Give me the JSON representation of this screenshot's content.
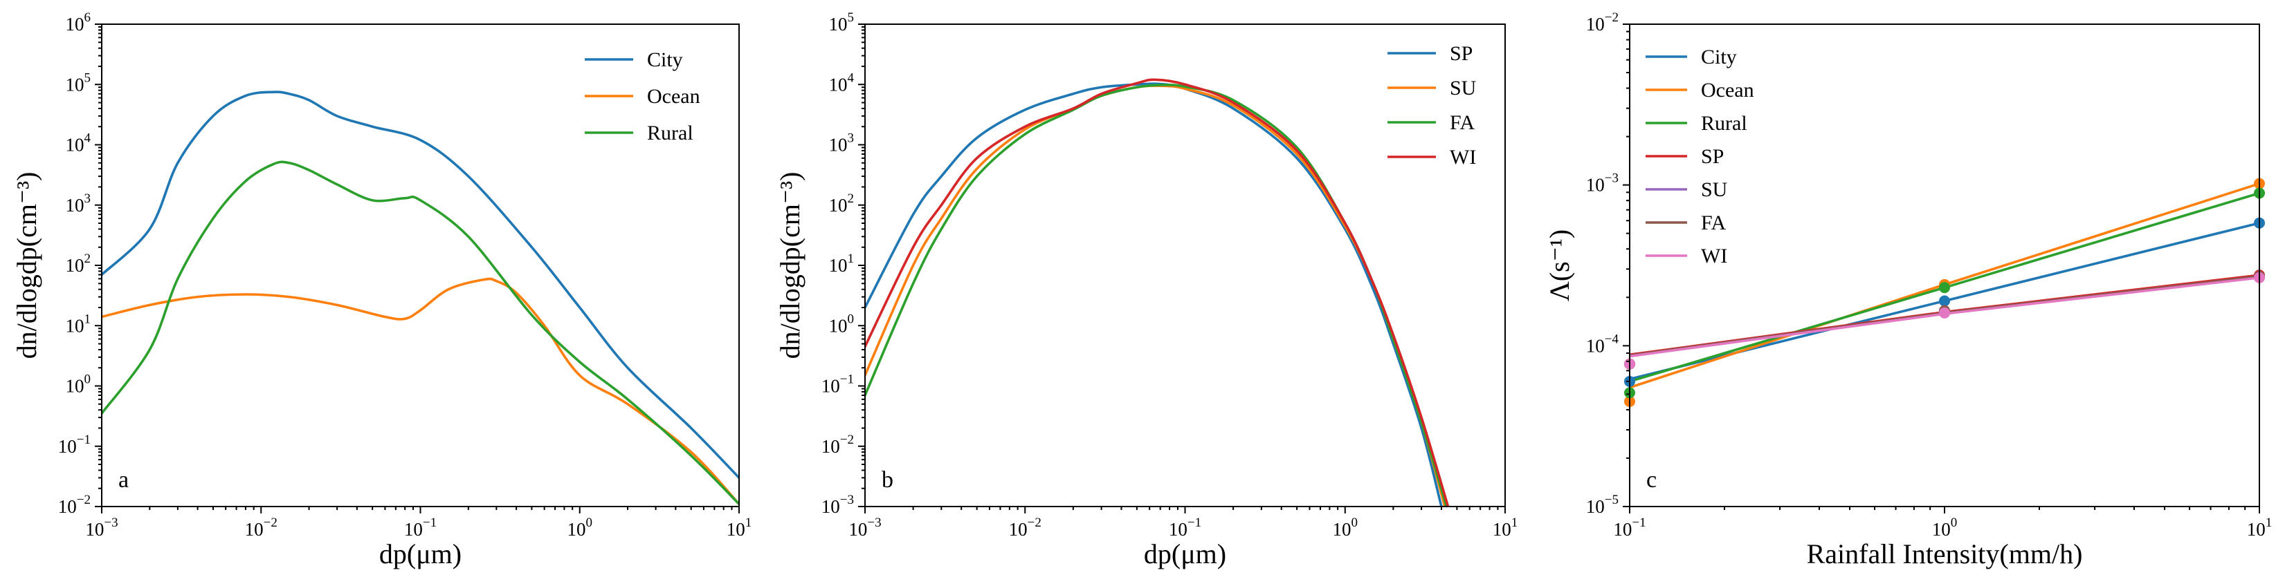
{
  "chart_data": [
    {
      "type": "line",
      "panel_label": "a",
      "xlabel": "dp(μm)",
      "ylabel": "dn/dlogdp(cm⁻³)",
      "x_scale": "log",
      "y_scale": "log",
      "xlim": [
        0.001,
        10
      ],
      "ylim": [
        0.01,
        1000000
      ],
      "x_ticks": [
        {
          "base": "10",
          "exp": "−3"
        },
        {
          "base": "10",
          "exp": "−2"
        },
        {
          "base": "10",
          "exp": "−1"
        },
        {
          "base": "10",
          "exp": "0"
        },
        {
          "base": "10",
          "exp": "1"
        }
      ],
      "y_ticks": [
        {
          "base": "10",
          "exp": "−2"
        },
        {
          "base": "10",
          "exp": "−1"
        },
        {
          "base": "10",
          "exp": "0"
        },
        {
          "base": "10",
          "exp": "1"
        },
        {
          "base": "10",
          "exp": "2"
        },
        {
          "base": "10",
          "exp": "3"
        },
        {
          "base": "10",
          "exp": "4"
        },
        {
          "base": "10",
          "exp": "5"
        },
        {
          "base": "10",
          "exp": "6"
        }
      ],
      "legend_position": "top-right",
      "series": [
        {
          "name": "City",
          "color": "#1f77b4",
          "x": [
            0.001,
            0.002,
            0.003,
            0.005,
            0.008,
            0.012,
            0.015,
            0.02,
            0.03,
            0.05,
            0.1,
            0.2,
            0.5,
            1,
            2,
            5,
            10
          ],
          "y": [
            70,
            400,
            5000,
            30000,
            65000,
            75000,
            70000,
            55000,
            30000,
            20000,
            12000,
            3000,
            200,
            20,
            2,
            0.2,
            0.03
          ]
        },
        {
          "name": "Ocean",
          "color": "#ff7f0e",
          "x": [
            0.001,
            0.002,
            0.004,
            0.008,
            0.015,
            0.03,
            0.06,
            0.08,
            0.1,
            0.15,
            0.25,
            0.3,
            0.4,
            0.6,
            1,
            2,
            5,
            10
          ],
          "y": [
            14,
            22,
            30,
            33,
            30,
            22,
            14,
            13,
            18,
            40,
            58,
            55,
            35,
            10,
            1.5,
            0.5,
            0.08,
            0.011
          ]
        },
        {
          "name": "Rural",
          "color": "#2ca02c",
          "x": [
            0.001,
            0.002,
            0.003,
            0.005,
            0.008,
            0.012,
            0.015,
            0.02,
            0.03,
            0.05,
            0.08,
            0.1,
            0.2,
            0.5,
            1,
            2,
            5,
            10
          ],
          "y": [
            0.35,
            4,
            60,
            600,
            2500,
            4800,
            5000,
            3800,
            2200,
            1200,
            1300,
            1200,
            300,
            15,
            2.5,
            0.6,
            0.07,
            0.011
          ]
        }
      ]
    },
    {
      "type": "line",
      "panel_label": "b",
      "xlabel": "dp(μm)",
      "ylabel": "dn/dlogdp(cm⁻³)",
      "x_scale": "log",
      "y_scale": "log",
      "xlim": [
        0.001,
        10
      ],
      "ylim": [
        0.001,
        100000
      ],
      "x_ticks": [
        {
          "base": "10",
          "exp": "−3"
        },
        {
          "base": "10",
          "exp": "−2"
        },
        {
          "base": "10",
          "exp": "−1"
        },
        {
          "base": "10",
          "exp": "0"
        },
        {
          "base": "10",
          "exp": "1"
        }
      ],
      "y_ticks": [
        {
          "base": "10",
          "exp": "−3"
        },
        {
          "base": "10",
          "exp": "−2"
        },
        {
          "base": "10",
          "exp": "−1"
        },
        {
          "base": "10",
          "exp": "0"
        },
        {
          "base": "10",
          "exp": "1"
        },
        {
          "base": "10",
          "exp": "2"
        },
        {
          "base": "10",
          "exp": "3"
        },
        {
          "base": "10",
          "exp": "4"
        },
        {
          "base": "10",
          "exp": "5"
        }
      ],
      "legend_position": "top-right",
      "series": [
        {
          "name": "SP",
          "color": "#1f77b4",
          "x": [
            0.001,
            0.002,
            0.003,
            0.005,
            0.01,
            0.02,
            0.03,
            0.05,
            0.07,
            0.1,
            0.2,
            0.5,
            1,
            1.5,
            2,
            3,
            4
          ],
          "y": [
            2,
            70,
            300,
            1300,
            3800,
            7000,
            9000,
            10000,
            10200,
            8500,
            4000,
            600,
            40,
            4,
            0.5,
            0.02,
            0.001
          ]
        },
        {
          "name": "SU",
          "color": "#ff7f0e",
          "x": [
            0.001,
            0.002,
            0.003,
            0.005,
            0.01,
            0.02,
            0.03,
            0.05,
            0.07,
            0.1,
            0.2,
            0.5,
            1,
            1.5,
            2,
            3,
            4.2
          ],
          "y": [
            0.15,
            10,
            60,
            400,
            1800,
            4000,
            6500,
            9000,
            9500,
            8500,
            4500,
            700,
            45,
            5,
            0.6,
            0.025,
            0.001
          ]
        },
        {
          "name": "FA",
          "color": "#2ca02c",
          "x": [
            0.001,
            0.002,
            0.003,
            0.005,
            0.01,
            0.02,
            0.03,
            0.05,
            0.07,
            0.1,
            0.2,
            0.5,
            1,
            1.5,
            2,
            3,
            4.3
          ],
          "y": [
            0.07,
            5,
            40,
            300,
            1500,
            3800,
            6500,
            9000,
            9800,
            9200,
            5500,
            900,
            50,
            5,
            0.6,
            0.025,
            0.001
          ]
        },
        {
          "name": "WI",
          "color": "#d62728",
          "x": [
            0.001,
            0.002,
            0.003,
            0.005,
            0.01,
            0.02,
            0.03,
            0.05,
            0.065,
            0.1,
            0.2,
            0.5,
            1,
            1.5,
            2,
            3,
            4.4
          ],
          "y": [
            0.45,
            20,
            100,
            600,
            2000,
            4000,
            7000,
            10500,
            12000,
            10000,
            5000,
            800,
            50,
            5,
            0.7,
            0.03,
            0.001
          ]
        }
      ]
    },
    {
      "type": "line",
      "panel_label": "c",
      "xlabel": "Rainfall Intensity(mm/h)",
      "ylabel": "Λ(s⁻¹)",
      "x_scale": "log",
      "y_scale": "log",
      "xlim": [
        0.1,
        10
      ],
      "ylim": [
        1e-05,
        0.01
      ],
      "x_ticks": [
        {
          "base": "10",
          "exp": "−1"
        },
        {
          "base": "10",
          "exp": "0"
        },
        {
          "base": "10",
          "exp": "1"
        }
      ],
      "y_ticks": [
        {
          "base": "10",
          "exp": "−5"
        },
        {
          "base": "10",
          "exp": "−4"
        },
        {
          "base": "10",
          "exp": "−3"
        },
        {
          "base": "10",
          "exp": "−2"
        }
      ],
      "legend_position": "top-left",
      "series": [
        {
          "name": "City",
          "color": "#1f77b4",
          "x": [
            0.1,
            1,
            10
          ],
          "y": [
            6e-05,
            0.00019,
            0.00058
          ],
          "line": [
            6.2e-05,
            0.00019,
            0.00058
          ]
        },
        {
          "name": "Ocean",
          "color": "#ff7f0e",
          "x": [
            0.1,
            1,
            10
          ],
          "y": [
            4.5e-05,
            0.00024,
            0.00102
          ],
          "line": [
            5.5e-05,
            0.00024,
            0.00102
          ]
        },
        {
          "name": "Rural",
          "color": "#2ca02c",
          "x": [
            0.1,
            1,
            10
          ],
          "y": [
            5.1e-05,
            0.00023,
            0.00089
          ],
          "line": [
            6e-05,
            0.00023,
            0.00089
          ]
        },
        {
          "name": "SP",
          "color": "#d62728",
          "x": [
            0.1,
            1,
            10
          ],
          "y": [
            7.7e-05,
            0.000165,
            0.000275
          ],
          "line": [
            8.8e-05,
            0.000162,
            0.000275
          ]
        },
        {
          "name": "SU",
          "color": "#9467bd",
          "x": [
            0.1,
            1,
            10
          ],
          "y": [
            7.7e-05,
            0.000165,
            0.00027
          ],
          "line": [
            8.7e-05,
            0.00016,
            0.00027
          ]
        },
        {
          "name": "FA",
          "color": "#8c564b",
          "x": [
            0.1,
            1,
            10
          ],
          "y": [
            7.7e-05,
            0.000165,
            0.00027
          ],
          "line": [
            8.7e-05,
            0.00016,
            0.00027
          ]
        },
        {
          "name": "WI",
          "color": "#e377c2",
          "x": [
            0.1,
            1,
            10
          ],
          "y": [
            7.7e-05,
            0.00016,
            0.000265
          ],
          "line": [
            8.6e-05,
            0.000158,
            0.000265
          ]
        }
      ]
    }
  ]
}
